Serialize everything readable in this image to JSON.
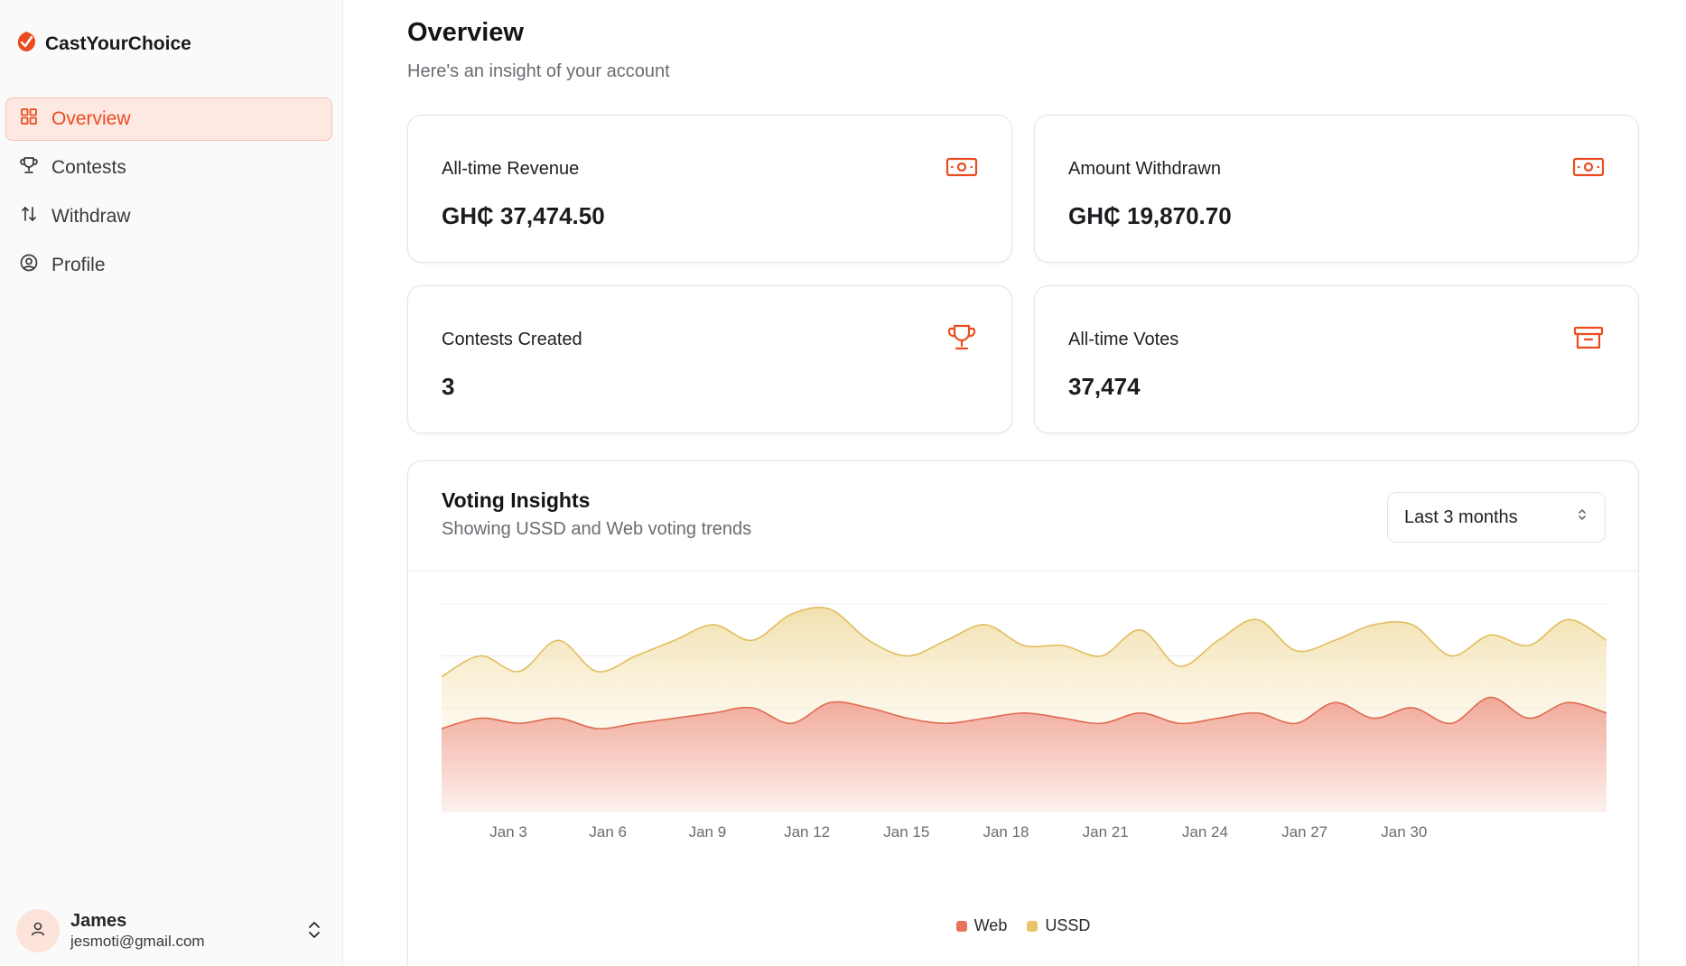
{
  "brand": {
    "name": "CastYourChoice",
    "accent": "#ea4c1f"
  },
  "nav": [
    {
      "label": "Overview",
      "icon": "grid-icon",
      "active": true
    },
    {
      "label": "Contests",
      "icon": "trophy-icon",
      "active": false
    },
    {
      "label": "Withdraw",
      "icon": "arrows-up-down-icon",
      "active": false
    },
    {
      "label": "Profile",
      "icon": "user-circle-icon",
      "active": false
    }
  ],
  "user": {
    "name": "James",
    "email": "jesmoti@gmail.com"
  },
  "header": {
    "title": "Overview",
    "subtitle": "Here's an insight of your account"
  },
  "stats": [
    {
      "label": "All-time Revenue",
      "value": "GH₵ 37,474.50",
      "icon": "banknote-icon"
    },
    {
      "label": "Amount Withdrawn",
      "value": "GH₵ 19,870.70",
      "icon": "banknote-icon"
    },
    {
      "label": "Contests Created",
      "value": "3",
      "icon": "trophy-icon"
    },
    {
      "label": "All-time Votes",
      "value": "37,474",
      "icon": "archive-icon"
    }
  ],
  "insights": {
    "title": "Voting Insights",
    "subtitle": "Showing USSD and Web voting trends",
    "range": "Last 3 months"
  },
  "chart_data": {
    "type": "area",
    "stacked": true,
    "x_ticks": [
      "Jan 3",
      "Jan 6",
      "Jan 9",
      "Jan 12",
      "Jan 15",
      "Jan 18",
      "Jan 21",
      "Jan 24",
      "Jan 27",
      "Jan 30"
    ],
    "y_range": [
      0,
      400
    ],
    "grid": "horizontal",
    "legend": "bottom-center",
    "series": [
      {
        "name": "Web",
        "color": "#e8735a",
        "values": [
          160,
          180,
          170,
          180,
          160,
          170,
          180,
          190,
          200,
          170,
          210,
          200,
          180,
          170,
          180,
          190,
          180,
          170,
          190,
          170,
          180,
          190,
          170,
          210,
          180,
          200,
          170,
          220,
          180,
          210,
          190
        ]
      },
      {
        "name": "USSD",
        "color": "#e9c46a",
        "values": [
          100,
          120,
          100,
          150,
          110,
          130,
          150,
          170,
          130,
          210,
          180,
          130,
          120,
          160,
          180,
          130,
          140,
          130,
          160,
          110,
          150,
          180,
          140,
          120,
          180,
          160,
          130,
          120,
          140,
          160,
          140
        ]
      }
    ]
  }
}
